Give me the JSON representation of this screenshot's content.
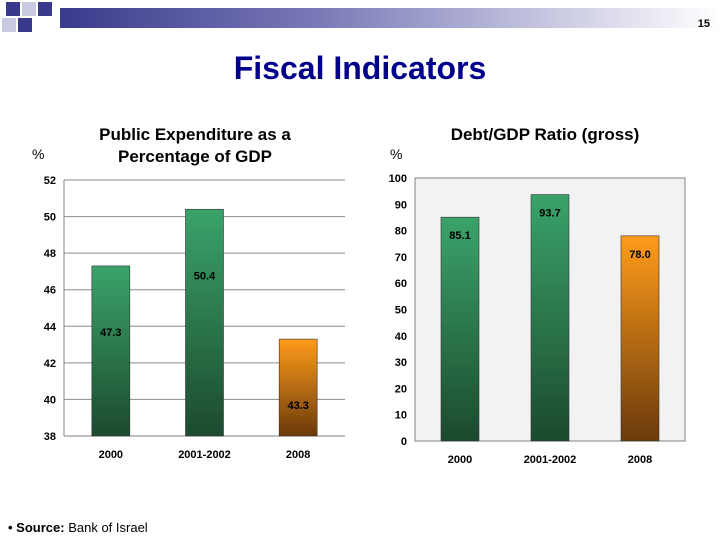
{
  "page_number": "15",
  "title": "Fiscal Indicators",
  "source": {
    "prefix": "• Source:",
    "text": "Bank of Israel"
  },
  "colors": {
    "title": "#00008b",
    "green_bar": "#2e9a5e",
    "orange_bar": "#ff9900"
  },
  "chart_data": [
    {
      "type": "bar",
      "title": "Public Expenditure as a Percentage of GDP",
      "ylabel": "%",
      "categories": [
        "2000",
        "2001-2002",
        "2008"
      ],
      "values": [
        47.3,
        50.4,
        43.3
      ],
      "value_labels": [
        "47.3",
        "50.4",
        "43.3"
      ],
      "bar_colors": [
        "green",
        "green",
        "orange"
      ],
      "ylim": [
        38,
        52
      ],
      "yticks": [
        38,
        40,
        42,
        44,
        46,
        48,
        50,
        52
      ],
      "grid": true
    },
    {
      "type": "bar",
      "title": "Debt/GDP Ratio (gross)",
      "ylabel": "%",
      "categories": [
        "2000",
        "2001-2002",
        "2008"
      ],
      "values": [
        85.1,
        93.7,
        78.0
      ],
      "value_labels": [
        "85.1",
        "93.7",
        "78.0"
      ],
      "bar_colors": [
        "green",
        "green",
        "orange"
      ],
      "ylim": [
        0,
        100
      ],
      "yticks": [
        0,
        10,
        20,
        30,
        40,
        50,
        60,
        70,
        80,
        90,
        100
      ],
      "grid": false
    }
  ]
}
